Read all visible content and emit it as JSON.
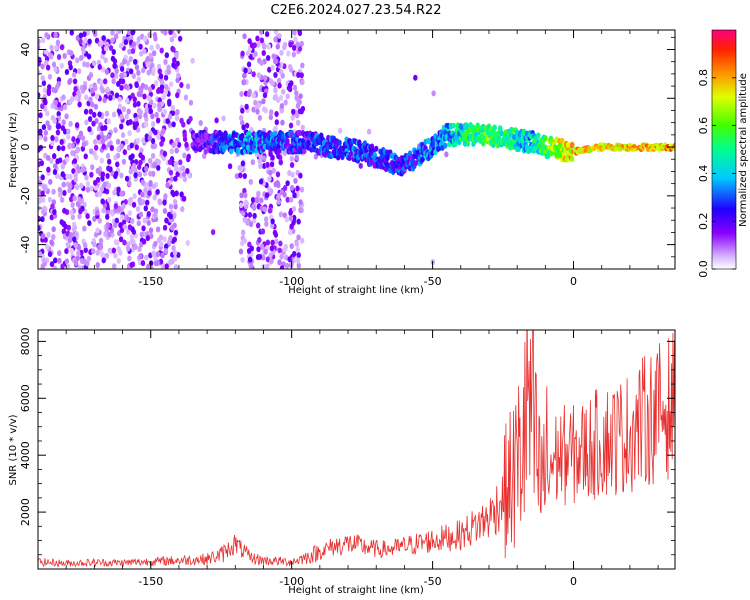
{
  "title": "C2E6.2024.027.23.54.R22",
  "colors": {
    "snr_line": "#e83030",
    "axis": "#000000",
    "background": "#ffffff"
  },
  "chart_data": [
    {
      "type": "heatmap",
      "xlabel": "Height of straight line (km)",
      "ylabel": "Frequency (Hz)",
      "xlim": [
        -190,
        36
      ],
      "ylim": [
        -50,
        48
      ],
      "x_ticks": [
        -150,
        -100,
        -50,
        0
      ],
      "y_ticks": [
        -40,
        -20,
        0,
        20,
        40
      ],
      "x_tick_labels": [
        "-150",
        "-100",
        "-50",
        "0"
      ],
      "y_tick_labels": [
        "-40",
        "-20",
        "0",
        "20",
        "40"
      ],
      "colorbar": {
        "label": "Normalized spectral amplitude",
        "range": [
          0,
          1
        ],
        "ticks": [
          0.0,
          0.2,
          0.4,
          0.6,
          0.8
        ],
        "tick_labels": [
          "0.0",
          "0.2",
          "0.4",
          "0.6",
          "0.8"
        ]
      },
      "description_points": [
        {
          "x": -130,
          "y": 2,
          "amp": 0.3
        },
        {
          "x": -120,
          "y": 2,
          "amp": 0.45
        },
        {
          "x": -95,
          "y": 2,
          "amp": 0.35
        },
        {
          "x": -85,
          "y": 0,
          "amp": 0.4
        },
        {
          "x": -75,
          "y": -2,
          "amp": 0.4
        },
        {
          "x": -60,
          "y": -8,
          "amp": 0.35
        },
        {
          "x": -45,
          "y": 5,
          "amp": 0.5
        },
        {
          "x": -30,
          "y": 5,
          "amp": 0.7
        },
        {
          "x": -15,
          "y": 2,
          "amp": 0.5
        },
        {
          "x": -10,
          "y": 0,
          "amp": 0.7
        },
        {
          "x": 0,
          "y": -2,
          "amp": 0.9
        },
        {
          "x": 10,
          "y": 0,
          "amp": 0.85
        },
        {
          "x": 20,
          "y": 0,
          "amp": 0.9
        },
        {
          "x": 30,
          "y": 0,
          "amp": 0.9
        }
      ]
    },
    {
      "type": "line",
      "xlabel": "Height of straight line (km)",
      "ylabel": "SNR (10 * v/v)",
      "xlim": [
        -190,
        36
      ],
      "ylim": [
        0,
        8400
      ],
      "x_ticks": [
        -150,
        -100,
        -50,
        0
      ],
      "y_ticks": [
        2000,
        4000,
        6000,
        8000
      ],
      "x_tick_labels": [
        "-150",
        "-100",
        "-50",
        "0"
      ],
      "y_tick_labels": [
        "2000",
        "4000",
        "6000",
        "8000"
      ],
      "series": [
        {
          "x": [
            -190,
            -180,
            -170,
            -160,
            -150,
            -140,
            -130,
            -125,
            -120,
            -115,
            -110,
            -100,
            -95,
            -90,
            -85,
            -80,
            -75,
            -70,
            -65,
            -60,
            -55,
            -50,
            -45,
            -40,
            -35,
            -30,
            -25,
            -20,
            -18,
            -16,
            -14,
            -12,
            -10,
            -5,
            0,
            5,
            10,
            15,
            20,
            25,
            30,
            36
          ],
          "y": [
            250,
            200,
            230,
            220,
            260,
            300,
            350,
            500,
            900,
            400,
            300,
            250,
            400,
            600,
            800,
            900,
            800,
            700,
            700,
            800,
            900,
            1000,
            1100,
            1200,
            1500,
            1800,
            2500,
            3500,
            4500,
            6000,
            4500,
            3000,
            3500,
            4000,
            4000,
            4200,
            4500,
            4600,
            4800,
            5200,
            5500,
            5800
          ]
        }
      ]
    }
  ]
}
